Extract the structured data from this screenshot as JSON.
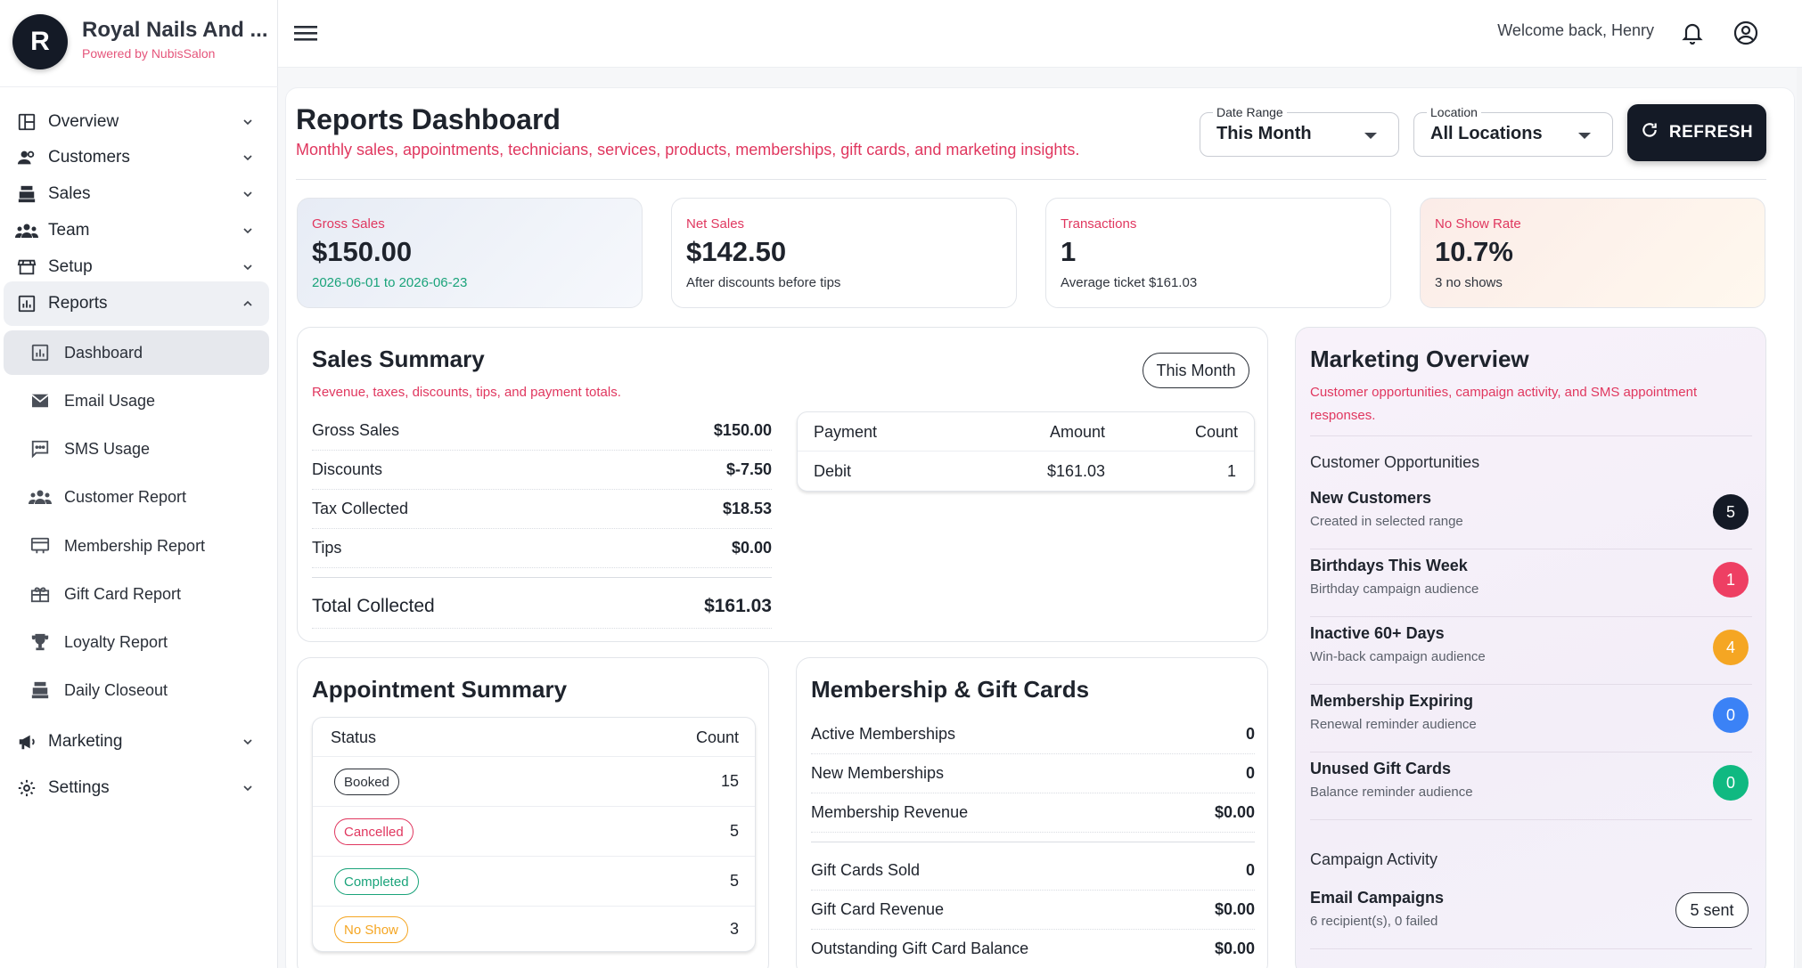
{
  "brand": {
    "initial": "R",
    "name": "Royal Nails And ...",
    "powered_by": "Powered by NubisSalon"
  },
  "topbar": {
    "welcome": "Welcome back, Henry",
    "icons": [
      "menu-icon",
      "bell-icon",
      "account-icon"
    ]
  },
  "sidebar": {
    "items": [
      {
        "label": "Overview",
        "icon": "dashboard-icon"
      },
      {
        "label": "Customers",
        "icon": "people-icon"
      },
      {
        "label": "Sales",
        "icon": "register-icon"
      },
      {
        "label": "Team",
        "icon": "team-icon"
      },
      {
        "label": "Setup",
        "icon": "store-icon"
      },
      {
        "label": "Reports",
        "icon": "chart-icon"
      },
      {
        "label": "Marketing",
        "icon": "megaphone-icon"
      },
      {
        "label": "Settings",
        "icon": "gear-icon"
      }
    ],
    "report_children": [
      {
        "label": "Dashboard",
        "icon": "chart-icon"
      },
      {
        "label": "Email Usage",
        "icon": "mail-icon"
      },
      {
        "label": "SMS Usage",
        "icon": "sms-icon"
      },
      {
        "label": "Customer Report",
        "icon": "people-icon"
      },
      {
        "label": "Membership Report",
        "icon": "card-icon"
      },
      {
        "label": "Gift Card Report",
        "icon": "gift-icon"
      },
      {
        "label": "Loyalty Report",
        "icon": "trophy-icon"
      },
      {
        "label": "Daily Closeout",
        "icon": "register-icon"
      }
    ]
  },
  "header": {
    "title": "Reports Dashboard",
    "subtitle": "Monthly sales, appointments, technicians, services, products, memberships, gift cards, and marketing insights.",
    "date_range": {
      "label": "Date Range",
      "value": "This Month"
    },
    "location": {
      "label": "Location",
      "value": "All Locations"
    },
    "refresh_label": "REFRESH"
  },
  "kpis": [
    {
      "label": "Gross Sales",
      "value": "$150.00",
      "note": "2026-06-01 to 2026-06-23"
    },
    {
      "label": "Net Sales",
      "value": "$142.50",
      "note": "After discounts before tips"
    },
    {
      "label": "Transactions",
      "value": "1",
      "note": "Average ticket $161.03"
    },
    {
      "label": "No Show Rate",
      "value": "10.7%",
      "note": "3 no shows"
    }
  ],
  "sales_summary": {
    "title": "Sales Summary",
    "subtitle": "Revenue, taxes, discounts, tips, and payment totals.",
    "period": "This Month",
    "rows": [
      {
        "label": "Gross Sales",
        "value": "$150.00"
      },
      {
        "label": "Discounts",
        "value": "$-7.50"
      },
      {
        "label": "Tax Collected",
        "value": "$18.53"
      },
      {
        "label": "Tips",
        "value": "$0.00"
      }
    ],
    "total": {
      "label": "Total Collected",
      "value": "$161.03"
    },
    "payments": {
      "headers": [
        "Payment",
        "Amount",
        "Count"
      ],
      "rows": [
        {
          "method": "Debit",
          "amount": "$161.03",
          "count": "1"
        }
      ]
    }
  },
  "appointment_summary": {
    "title": "Appointment Summary",
    "headers": [
      "Status",
      "Count"
    ],
    "rows": [
      {
        "status": "Booked",
        "count": "15",
        "color": "#2b3038"
      },
      {
        "status": "Cancelled",
        "count": "5",
        "color": "#e0375f"
      },
      {
        "status": "Completed",
        "count": "5",
        "color": "#1aa37a"
      },
      {
        "status": "No Show",
        "count": "3",
        "color": "#f5a623"
      }
    ]
  },
  "membership_gift": {
    "title": "Membership & Gift Cards",
    "membership_rows": [
      {
        "label": "Active Memberships",
        "value": "0"
      },
      {
        "label": "New Memberships",
        "value": "0"
      },
      {
        "label": "Membership Revenue",
        "value": "$0.00"
      }
    ],
    "gift_rows": [
      {
        "label": "Gift Cards Sold",
        "value": "0"
      },
      {
        "label": "Gift Card Revenue",
        "value": "$0.00"
      },
      {
        "label": "Outstanding Gift Card Balance",
        "value": "$0.00"
      }
    ]
  },
  "marketing": {
    "title": "Marketing Overview",
    "subtitle_line1": "Customer opportunities, campaign activity, and SMS appointment",
    "subtitle_line2": "responses.",
    "opportunities_title": "Customer Opportunities",
    "opportunities": [
      {
        "name": "New Customers",
        "desc": "Created in selected range",
        "count": "5",
        "color": "#141a26"
      },
      {
        "name": "Birthdays This Week",
        "desc": "Birthday campaign audience",
        "count": "1",
        "color": "#ee3f63"
      },
      {
        "name": "Inactive 60+ Days",
        "desc": "Win-back campaign audience",
        "count": "4",
        "color": "#f5a623"
      },
      {
        "name": "Membership Expiring",
        "desc": "Renewal reminder audience",
        "count": "0",
        "color": "#3b82f6"
      },
      {
        "name": "Unused Gift Cards",
        "desc": "Balance reminder audience",
        "count": "0",
        "color": "#10b981"
      }
    ],
    "campaign_title": "Campaign Activity",
    "campaigns": [
      {
        "name": "Email Campaigns",
        "desc": "6 recipient(s), 0 failed",
        "badge": "5 sent"
      }
    ]
  }
}
